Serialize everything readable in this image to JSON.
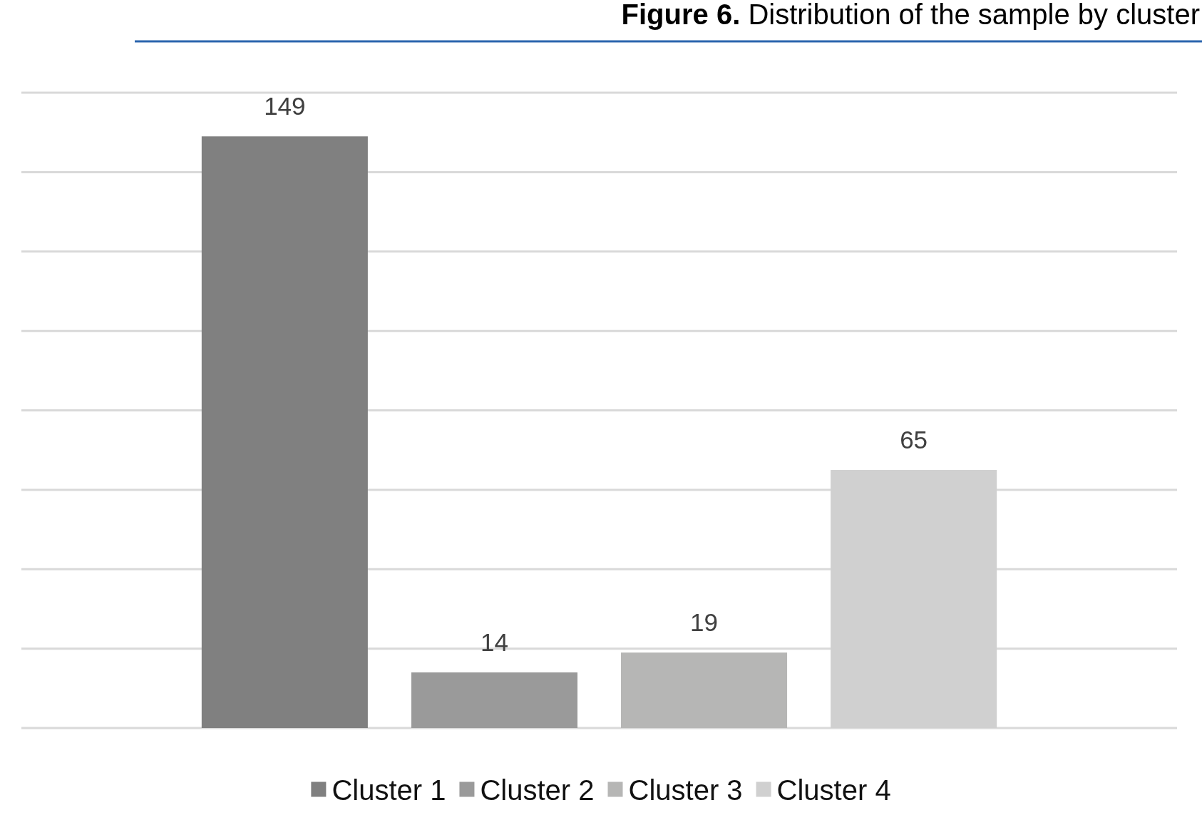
{
  "chart_data": {
    "type": "bar",
    "title": "Figure 6. Distribution of the sample by cluster",
    "categories": [
      null
    ],
    "series": [
      {
        "name": "Cluster 1",
        "color": "#808080",
        "values": [
          149
        ]
      },
      {
        "name": "Cluster 2",
        "color": "#9a9a9a",
        "values": [
          14
        ]
      },
      {
        "name": "Cluster 3",
        "color": "#b6b6b5",
        "values": [
          19
        ]
      },
      {
        "name": "Cluster 4",
        "color": "#d0d0d0",
        "values": [
          65
        ]
      }
    ],
    "ylim": [
      0,
      160
    ],
    "yticks": [
      {
        "value": 0,
        "label": null
      },
      {
        "value": 20,
        "label": null
      },
      {
        "value": 40,
        "label": null
      },
      {
        "value": 60,
        "label": null
      },
      {
        "value": 80,
        "label": null
      },
      {
        "value": 100,
        "label": null
      },
      {
        "value": 120,
        "label": null
      },
      {
        "value": 140,
        "label": null
      },
      {
        "value": 160,
        "label": null
      }
    ],
    "grid": "y",
    "data_labels": true,
    "legend": "bottom"
  }
}
